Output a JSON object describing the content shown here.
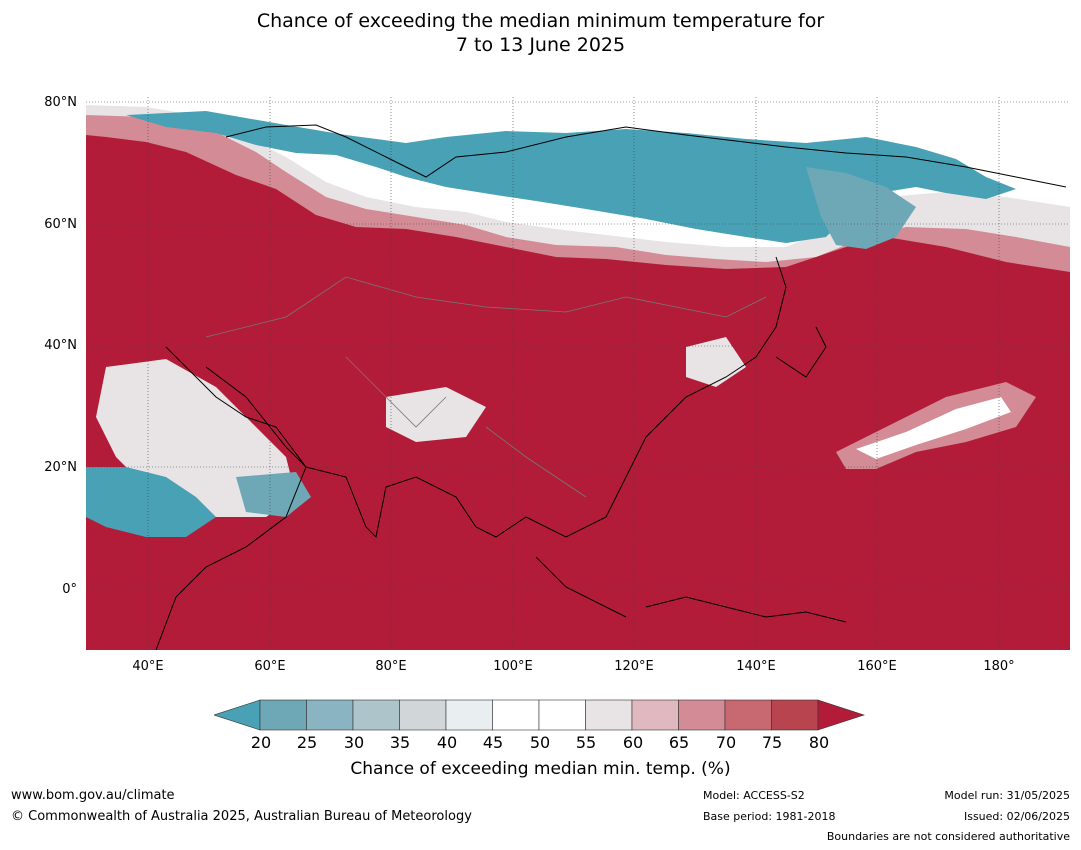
{
  "title": {
    "line1": "Chance of exceeding the median minimum temperature for",
    "line2": "7 to 13 June 2025"
  },
  "map": {
    "lat_labels": [
      "80°N",
      "60°N",
      "40°N",
      "20°N",
      "0°"
    ],
    "lon_labels": [
      "40°E",
      "60°E",
      "80°E",
      "100°E",
      "120°E",
      "140°E",
      "160°E",
      "180°"
    ],
    "colors": {
      "ocean_warm": "#b21c38",
      "cold": "#48a1b4",
      "neutral": "#ffffff",
      "coast": "#000000",
      "border": "#777777"
    }
  },
  "colorbar": {
    "ticks": [
      "20",
      "25",
      "30",
      "35",
      "40",
      "45",
      "50",
      "55",
      "60",
      "65",
      "70",
      "75",
      "80"
    ],
    "colors": [
      "#48a1b4",
      "#6ea8b6",
      "#8bb4c2",
      "#acc4ca",
      "#d1d6d9",
      "#e9eef1",
      "#ffffff",
      "#ffffff",
      "#e8e4e6",
      "#e0b8bf",
      "#d38b95",
      "#c86972",
      "#b7444f",
      "#b21c38"
    ],
    "label": "Chance of exceeding median min. temp. (%)"
  },
  "footer": {
    "website": "www.bom.gov.au/climate",
    "copyright": "© Commonwealth of Australia 2025, Australian Bureau of Meteorology",
    "model": "Model: ACCESS-S2",
    "base_period": "Base period: 1981-2018",
    "model_run": "Model run: 31/05/2025",
    "issued": "Issued: 02/06/2025",
    "disclaimer": "Boundaries are not considered authoritative"
  }
}
